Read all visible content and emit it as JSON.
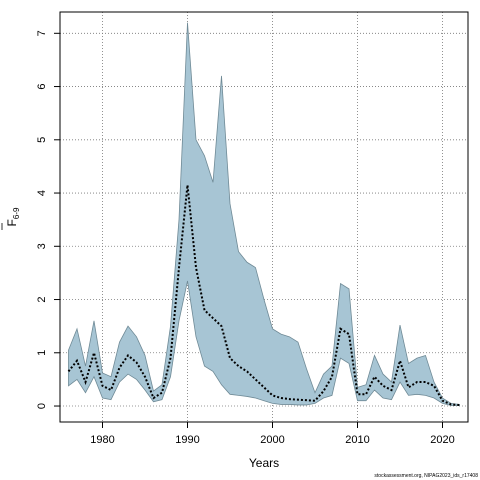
{
  "chart_data": {
    "type": "area",
    "title": "",
    "xlabel": "Years",
    "ylabel": "F6-9",
    "ylabel_main": "F",
    "ylabel_sub": "6-9",
    "xlim": [
      1975,
      2023
    ],
    "ylim": [
      -0.3,
      7.4
    ],
    "grid": true,
    "x_ticks": [
      1980,
      1990,
      2000,
      2010,
      2020
    ],
    "x_tick_labels": [
      "1980",
      "1990",
      "2000",
      "2010",
      "2020"
    ],
    "y_ticks": [
      0,
      1,
      2,
      3,
      4,
      5,
      6,
      7
    ],
    "y_tick_labels": [
      "0",
      "1",
      "2",
      "3",
      "4",
      "5",
      "6",
      "7"
    ],
    "colors": {
      "band_fill": "#a7c5d4",
      "band_edge": "#6f8a96",
      "line": "#000000",
      "grid": "#777777"
    },
    "series": [
      {
        "name": "",
        "style": "dotted",
        "x": [
          1976,
          1977,
          1978,
          1979,
          1980,
          1981,
          1982,
          1983,
          1984,
          1985,
          1986,
          1987,
          1988,
          1989,
          1990,
          1991,
          1992,
          1993,
          1994,
          1995,
          1996,
          1997,
          1998,
          1999,
          2000,
          2001,
          2002,
          2003,
          2004,
          2005,
          2006,
          2007,
          2008,
          2009,
          2010,
          2011,
          2012,
          2013,
          2014,
          2015,
          2016,
          2017,
          2018,
          2019,
          2020,
          2021,
          2022
        ],
        "values": [
          0.65,
          0.85,
          0.45,
          1.0,
          0.38,
          0.3,
          0.72,
          0.95,
          0.82,
          0.55,
          0.15,
          0.25,
          0.9,
          2.6,
          4.15,
          2.6,
          1.8,
          1.65,
          1.5,
          0.9,
          0.75,
          0.65,
          0.5,
          0.35,
          0.2,
          0.15,
          0.13,
          0.12,
          0.11,
          0.1,
          0.28,
          0.55,
          1.45,
          1.35,
          0.22,
          0.22,
          0.55,
          0.38,
          0.3,
          0.85,
          0.35,
          0.45,
          0.45,
          0.38,
          0.1,
          0.03,
          0.02
        ]
      }
    ],
    "band": {
      "x": [
        1976,
        1977,
        1978,
        1979,
        1980,
        1981,
        1982,
        1983,
        1984,
        1985,
        1986,
        1987,
        1988,
        1989,
        1990,
        1991,
        1992,
        1993,
        1994,
        1995,
        1996,
        1997,
        1998,
        1999,
        2000,
        2001,
        2002,
        2003,
        2004,
        2005,
        2006,
        2007,
        2008,
        2009,
        2010,
        2011,
        2012,
        2013,
        2014,
        2015,
        2016,
        2017,
        2018,
        2019,
        2020,
        2021,
        2022
      ],
      "upper": [
        1.05,
        1.45,
        0.75,
        1.6,
        0.62,
        0.55,
        1.2,
        1.5,
        1.3,
        0.95,
        0.28,
        0.4,
        1.5,
        3.5,
        7.2,
        5.0,
        4.7,
        4.2,
        6.2,
        3.8,
        2.9,
        2.7,
        2.6,
        2.0,
        1.45,
        1.35,
        1.3,
        1.2,
        0.7,
        0.25,
        0.6,
        0.75,
        2.3,
        2.2,
        0.35,
        0.4,
        0.95,
        0.6,
        0.45,
        1.52,
        0.8,
        0.9,
        0.95,
        0.45,
        0.15,
        0.05,
        0.03
      ],
      "lower": [
        0.38,
        0.5,
        0.25,
        0.55,
        0.15,
        0.12,
        0.45,
        0.6,
        0.5,
        0.3,
        0.08,
        0.12,
        0.55,
        1.6,
        2.35,
        1.3,
        0.75,
        0.65,
        0.4,
        0.22,
        0.2,
        0.18,
        0.15,
        0.1,
        0.05,
        0.03,
        0.03,
        0.02,
        0.02,
        0.05,
        0.15,
        0.2,
        0.9,
        0.8,
        0.1,
        0.1,
        0.3,
        0.15,
        0.12,
        0.45,
        0.2,
        0.22,
        0.2,
        0.15,
        0.05,
        0.01,
        0.01
      ]
    }
  },
  "footer": {
    "watermark": "stockassessment.org, NIPAG2023_ids_r17408"
  }
}
